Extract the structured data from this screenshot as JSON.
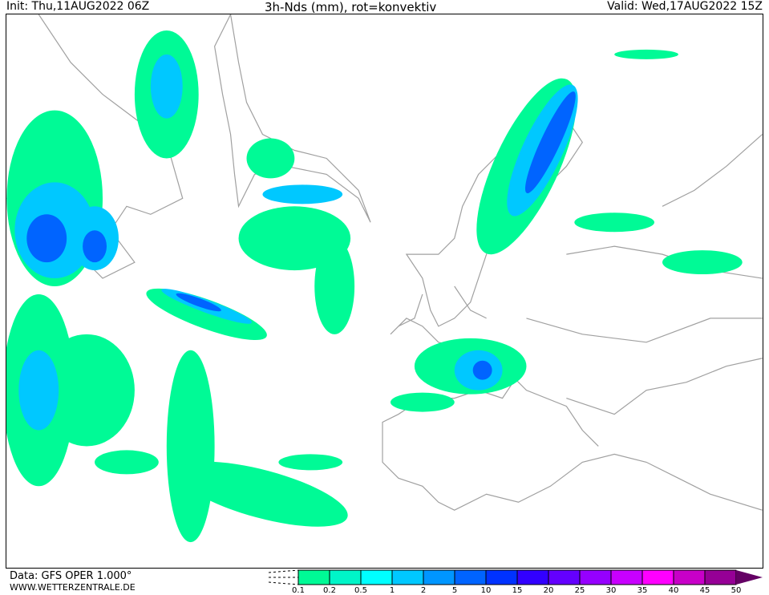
{
  "header": {
    "init": "Init: Thu,11AUG2022 06Z",
    "title": "3h-Nds (mm), rot=konvektiv",
    "valid": "Valid: Wed,17AUG2022 15Z"
  },
  "footer": {
    "data_source": "Data: GFS OPER 1.000°",
    "website": "WWW.WETTERZENTRALE.DE"
  },
  "legend": {
    "labels": [
      "0.1",
      "0.2",
      "0.5",
      "1",
      "2",
      "5",
      "10",
      "15",
      "20",
      "25",
      "30",
      "35",
      "40",
      "45",
      "50"
    ],
    "colors": [
      "#00fa96",
      "#00f5c8",
      "#00ffff",
      "#00c8ff",
      "#0096ff",
      "#0064ff",
      "#0032ff",
      "#3200ff",
      "#6400ff",
      "#9600ff",
      "#c800ff",
      "#ff00ff",
      "#c800c8",
      "#960096"
    ],
    "overflow_color": "#640064"
  }
}
